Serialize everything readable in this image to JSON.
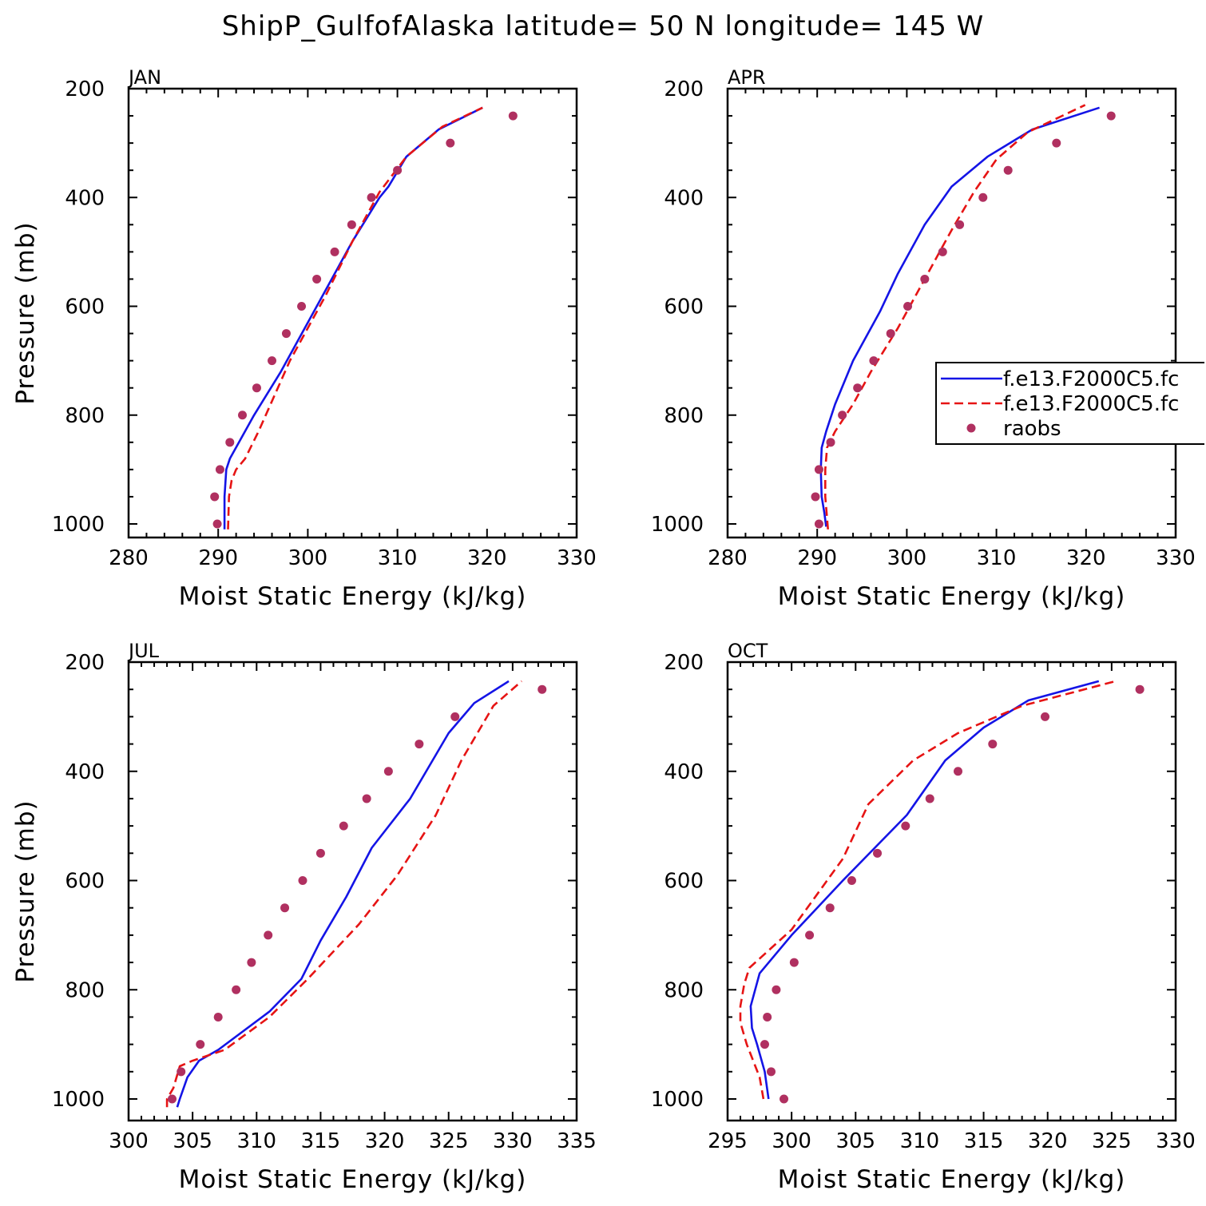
{
  "title": "ShipP_GulfofAlaska  latitude= 50 N longitude= 145 W",
  "legend": {
    "entries": [
      {
        "label": "f.e13.F2000C5.fc",
        "style": "solid",
        "color": "#1414e6"
      },
      {
        "label": "f.e13.F2000C5.fc",
        "style": "dashed",
        "color": "#e61414"
      },
      {
        "label": "raobs",
        "style": "dot",
        "color": "#b03060"
      }
    ]
  },
  "chart_data": [
    {
      "type": "line",
      "panel": "JAN",
      "xlabel": "Moist Static Energy (kJ/kg)",
      "ylabel": "Pressure (mb)",
      "xlim": [
        280,
        330
      ],
      "ylim": [
        1000,
        200
      ],
      "xticks": [
        280,
        290,
        300,
        310,
        320,
        330
      ],
      "yticks": [
        200,
        400,
        600,
        800,
        1000
      ],
      "series": [
        {
          "name": "f.e13.F2000C5.fc",
          "style": "solid",
          "color": "#1414e6",
          "x": [
            290.7,
            290.7,
            290.9,
            291.3,
            294.0,
            297.0,
            301.0,
            305.0,
            308.0,
            309.0,
            311.0,
            314.6,
            319.5
          ],
          "y": [
            1010,
            950,
            900,
            880,
            800,
            720,
            600,
            480,
            400,
            380,
            325,
            275,
            235
          ]
        },
        {
          "name": "f.e13.F2000C5.fc",
          "style": "dashed",
          "color": "#e61414",
          "x": [
            291.1,
            291.2,
            291.5,
            292.0,
            293.0,
            294.5,
            298.0,
            302.0,
            305.0,
            308.0,
            311.0,
            315.0,
            319.5
          ],
          "y": [
            1010,
            950,
            920,
            900,
            880,
            830,
            700,
            580,
            480,
            390,
            325,
            270,
            235
          ]
        }
      ],
      "points": {
        "name": "raobs",
        "color": "#b03060",
        "x": [
          289.9,
          289.6,
          290.2,
          291.3,
          292.7,
          294.3,
          296.0,
          297.6,
          299.3,
          301.0,
          303.0,
          304.9,
          307.1,
          310.0,
          315.9,
          322.9
        ],
        "y": [
          1000,
          950,
          900,
          850,
          800,
          750,
          700,
          650,
          600,
          550,
          500,
          450,
          400,
          350,
          300,
          250
        ]
      }
    },
    {
      "type": "line",
      "panel": "APR",
      "xlabel": "Moist Static Energy (kJ/kg)",
      "ylabel": "",
      "xlim": [
        280,
        330
      ],
      "ylim": [
        1000,
        200
      ],
      "xticks": [
        280,
        290,
        300,
        310,
        320,
        330
      ],
      "yticks": [
        200,
        400,
        600,
        800,
        1000
      ],
      "series": [
        {
          "name": "f.e13.F2000C5.fc",
          "style": "solid",
          "color": "#1414e6",
          "x": [
            291.0,
            290.8,
            290.5,
            290.4,
            290.5,
            291.0,
            292.0,
            294.0,
            297.0,
            299.0,
            302.0,
            305.0,
            309.0,
            314.0,
            321.5
          ],
          "y": [
            1005,
            980,
            950,
            900,
            860,
            830,
            780,
            700,
            610,
            540,
            450,
            380,
            325,
            275,
            235
          ]
        },
        {
          "name": "f.e13.F2000C5.fc",
          "style": "dashed",
          "color": "#e61414",
          "x": [
            291.2,
            290.9,
            290.9,
            291.1,
            292.0,
            294.0,
            296.0,
            299.0,
            302.0,
            305.0,
            307.5,
            310.0,
            313.5,
            319.9
          ],
          "y": [
            1010,
            950,
            900,
            860,
            830,
            780,
            720,
            640,
            550,
            460,
            390,
            330,
            280,
            230
          ]
        }
      ],
      "points": {
        "name": "raobs",
        "color": "#b03060",
        "x": [
          290.2,
          289.8,
          290.2,
          291.5,
          292.8,
          294.5,
          296.3,
          298.2,
          300.1,
          302.0,
          304.0,
          305.9,
          308.5,
          311.3,
          316.7,
          322.8
        ],
        "y": [
          1000,
          950,
          900,
          850,
          800,
          750,
          700,
          650,
          600,
          550,
          500,
          450,
          400,
          350,
          300,
          250
        ]
      }
    },
    {
      "type": "line",
      "panel": "JUL",
      "xlabel": "Moist Static Energy (kJ/kg)",
      "ylabel": "Pressure (mb)",
      "xlim": [
        300,
        335
      ],
      "ylim": [
        1000,
        200
      ],
      "xticks": [
        300,
        305,
        310,
        315,
        320,
        325,
        330,
        335
      ],
      "yticks": [
        200,
        400,
        600,
        800,
        1000
      ],
      "series": [
        {
          "name": "f.e13.F2000C5.fc",
          "style": "solid",
          "color": "#1414e6",
          "x": [
            303.8,
            304.0,
            304.6,
            305.5,
            307.0,
            311.0,
            313.5,
            315.0,
            317.0,
            319.0,
            322.0,
            325.0,
            327.0,
            329.7
          ],
          "y": [
            1015,
            1000,
            960,
            930,
            910,
            840,
            780,
            710,
            630,
            540,
            450,
            330,
            275,
            235
          ]
        },
        {
          "name": "f.e13.F2000C5.fc",
          "style": "dashed",
          "color": "#e61414",
          "x": [
            303.0,
            303.0,
            303.5,
            304.0,
            305.0,
            307.5,
            311.0,
            314.0,
            318.0,
            321.0,
            324.0,
            326.0,
            328.5,
            330.7
          ],
          "y": [
            1015,
            1000,
            980,
            940,
            930,
            910,
            850,
            780,
            680,
            590,
            480,
            380,
            280,
            235
          ]
        }
      ],
      "points": {
        "name": "raobs",
        "color": "#b03060",
        "x": [
          303.4,
          304.1,
          305.6,
          307.0,
          308.4,
          309.6,
          310.9,
          312.2,
          313.6,
          315.0,
          316.8,
          318.6,
          320.3,
          322.7,
          325.5,
          332.3
        ],
        "y": [
          1000,
          950,
          900,
          850,
          800,
          750,
          700,
          650,
          600,
          550,
          500,
          450,
          400,
          350,
          300,
          250
        ]
      }
    },
    {
      "type": "line",
      "panel": "OCT",
      "xlabel": "Moist Static Energy (kJ/kg)",
      "ylabel": "",
      "xlim": [
        295,
        330
      ],
      "ylim": [
        1000,
        200
      ],
      "xticks": [
        295,
        300,
        305,
        310,
        315,
        320,
        325,
        330
      ],
      "yticks": [
        200,
        400,
        600,
        800,
        1000
      ],
      "series": [
        {
          "name": "f.e13.F2000C5.fc",
          "style": "solid",
          "color": "#1414e6",
          "x": [
            298.2,
            297.9,
            297.3,
            296.9,
            296.8,
            297.5,
            300.0,
            304.0,
            309.0,
            312.0,
            315.0,
            318.5,
            324.0
          ],
          "y": [
            1000,
            950,
            900,
            870,
            830,
            770,
            700,
            600,
            480,
            380,
            320,
            270,
            235
          ]
        },
        {
          "name": "f.e13.F2000C5.fc",
          "style": "dashed",
          "color": "#e61414",
          "x": [
            297.8,
            297.5,
            296.5,
            296.0,
            296.0,
            296.3,
            296.7,
            300.0,
            304.0,
            306.0,
            309.5,
            313.0,
            318.0,
            325.3
          ],
          "y": [
            1000,
            960,
            900,
            860,
            830,
            790,
            760,
            690,
            560,
            460,
            380,
            330,
            280,
            235
          ]
        }
      ],
      "points": {
        "name": "raobs",
        "color": "#b03060",
        "x": [
          299.4,
          298.4,
          297.9,
          298.1,
          298.8,
          300.2,
          301.4,
          303.0,
          304.7,
          306.7,
          308.9,
          310.8,
          313.0,
          315.7,
          319.8,
          327.2
        ],
        "y": [
          1000,
          950,
          900,
          850,
          800,
          750,
          700,
          650,
          600,
          550,
          500,
          450,
          400,
          350,
          300,
          250
        ]
      }
    }
  ]
}
